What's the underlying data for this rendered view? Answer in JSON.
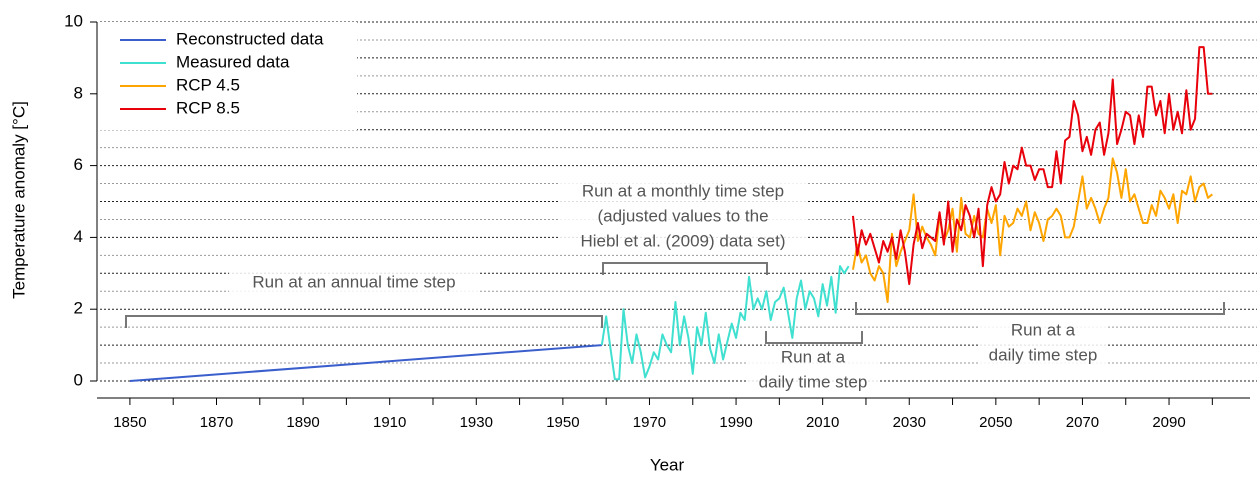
{
  "chart_data": {
    "type": "line",
    "x_label": "Year",
    "y_label": "Temperature anomaly [°C]",
    "xlim": [
      1842.4,
      2108.7
    ],
    "xticks": [
      1850,
      1870,
      1890,
      1910,
      1930,
      1950,
      1970,
      1990,
      2010,
      2030,
      2050,
      2070,
      2090
    ],
    "xminor_ticks": [
      1860,
      1880,
      1900,
      1920,
      1940,
      1960,
      1980,
      2000,
      2020,
      2040,
      2060,
      2080,
      2100
    ],
    "ylim": [
      0,
      10
    ],
    "yticks": [
      0,
      2,
      4,
      6,
      8,
      10
    ],
    "ygrid": [
      0,
      0.5,
      1,
      1.5,
      2,
      2.5,
      3,
      3.5,
      4,
      4.5,
      5,
      5.5,
      6,
      6.5,
      7,
      7.5,
      8,
      8.5,
      9,
      9.5,
      10
    ],
    "grid": true,
    "legend": "top-left",
    "series": [
      {
        "name": "Reconstructed data",
        "color": "#3a5fcd",
        "x": [
          1850,
          1959
        ],
        "values": [
          0,
          1.0
        ]
      },
      {
        "name": "Measured data",
        "color": "#40e0d0",
        "x": [
          1959,
          1960,
          1961,
          1962,
          1963,
          1964,
          1965,
          1966,
          1967,
          1968,
          1969,
          1970,
          1971,
          1972,
          1973,
          1974,
          1975,
          1976,
          1977,
          1978,
          1979,
          1980,
          1981,
          1982,
          1983,
          1984,
          1985,
          1986,
          1987,
          1988,
          1989,
          1990,
          1991,
          1992,
          1993,
          1994,
          1995,
          1996,
          1997,
          1998,
          1999,
          2000,
          2001,
          2002,
          2003,
          2004,
          2005,
          2006,
          2007,
          2008,
          2009,
          2010,
          2011,
          2012,
          2013,
          2014,
          2015,
          2016
        ],
        "values": [
          1.0,
          1.8,
          0.9,
          0.05,
          0.05,
          2.0,
          1.0,
          0.5,
          1.3,
          0.8,
          0.1,
          0.4,
          0.8,
          0.6,
          1.3,
          1.0,
          0.8,
          2.2,
          1.0,
          1.8,
          1.2,
          0.2,
          1.5,
          1.0,
          1.9,
          0.9,
          0.5,
          1.3,
          0.6,
          1.1,
          1.6,
          1.2,
          1.9,
          1.7,
          2.9,
          2.0,
          2.3,
          2.0,
          2.5,
          1.7,
          2.2,
          2.3,
          2.6,
          1.9,
          1.2,
          2.3,
          2.8,
          2.0,
          2.5,
          2.3,
          1.8,
          2.7,
          2.1,
          2.9,
          1.9,
          3.2,
          3.0,
          3.2
        ]
      },
      {
        "name": "RCP 4.5",
        "color": "#ffa500",
        "x": [
          2017,
          2018,
          2019,
          2020,
          2021,
          2022,
          2023,
          2024,
          2025,
          2026,
          2027,
          2028,
          2029,
          2030,
          2031,
          2032,
          2033,
          2034,
          2035,
          2036,
          2037,
          2038,
          2039,
          2040,
          2041,
          2042,
          2043,
          2044,
          2045,
          2046,
          2047,
          2048,
          2049,
          2050,
          2051,
          2052,
          2053,
          2054,
          2055,
          2056,
          2057,
          2058,
          2059,
          2060,
          2061,
          2062,
          2063,
          2064,
          2065,
          2066,
          2067,
          2068,
          2069,
          2070,
          2071,
          2072,
          2073,
          2074,
          2075,
          2076,
          2077,
          2078,
          2079,
          2080,
          2081,
          2082,
          2083,
          2084,
          2085,
          2086,
          2087,
          2088,
          2089,
          2090,
          2091,
          2092,
          2093,
          2094,
          2095,
          2096,
          2097,
          2098,
          2099,
          2100
        ],
        "values": [
          3.1,
          3.8,
          3.3,
          3.5,
          3.0,
          2.8,
          3.2,
          3.0,
          2.2,
          4.1,
          3.2,
          3.6,
          3.9,
          4.2,
          5.2,
          3.9,
          4.3,
          4.0,
          3.8,
          3.5,
          4.6,
          3.9,
          4.2,
          4.8,
          3.6,
          5.1,
          4.1,
          4.0,
          4.6,
          4.1,
          4.0,
          4.8,
          4.4,
          4.9,
          3.5,
          4.6,
          4.3,
          4.4,
          4.8,
          4.6,
          5.0,
          4.2,
          4.7,
          4.4,
          3.9,
          4.5,
          4.6,
          4.8,
          4.6,
          4.0,
          4.0,
          4.3,
          5.0,
          5.7,
          4.8,
          5.1,
          4.8,
          4.4,
          4.8,
          5.1,
          6.2,
          5.8,
          5.1,
          5.9,
          5.0,
          5.2,
          4.8,
          4.4,
          4.4,
          4.9,
          4.6,
          5.3,
          5.1,
          4.8,
          5.2,
          4.4,
          5.3,
          5.2,
          5.7,
          5.0,
          5.4,
          5.5,
          5.1,
          5.2
        ]
      },
      {
        "name": "RCP 8.5",
        "color": "#e8000b",
        "x": [
          2017,
          2018,
          2019,
          2020,
          2021,
          2022,
          2023,
          2024,
          2025,
          2026,
          2027,
          2028,
          2029,
          2030,
          2031,
          2032,
          2033,
          2034,
          2035,
          2036,
          2037,
          2038,
          2039,
          2040,
          2041,
          2042,
          2043,
          2044,
          2045,
          2046,
          2047,
          2048,
          2049,
          2050,
          2051,
          2052,
          2053,
          2054,
          2055,
          2056,
          2057,
          2058,
          2059,
          2060,
          2061,
          2062,
          2063,
          2064,
          2065,
          2066,
          2067,
          2068,
          2069,
          2070,
          2071,
          2072,
          2073,
          2074,
          2075,
          2076,
          2077,
          2078,
          2079,
          2080,
          2081,
          2082,
          2083,
          2084,
          2085,
          2086,
          2087,
          2088,
          2089,
          2090,
          2091,
          2092,
          2093,
          2094,
          2095,
          2096,
          2097,
          2098,
          2099,
          2100
        ],
        "values": [
          4.6,
          3.5,
          4.2,
          3.8,
          4.1,
          3.7,
          3.3,
          3.9,
          3.6,
          4.0,
          3.4,
          4.2,
          3.6,
          2.7,
          3.8,
          4.4,
          3.7,
          4.1,
          4.0,
          3.9,
          4.7,
          3.8,
          5.0,
          3.6,
          4.5,
          4.2,
          4.9,
          4.6,
          4.0,
          4.8,
          3.2,
          4.9,
          5.4,
          5.0,
          5.2,
          6.1,
          5.5,
          6.0,
          5.9,
          6.5,
          6.0,
          6.0,
          5.6,
          5.9,
          5.9,
          5.4,
          5.4,
          6.4,
          5.5,
          6.7,
          6.8,
          7.8,
          7.4,
          6.4,
          6.8,
          6.3,
          7.0,
          7.2,
          6.3,
          6.9,
          8.4,
          6.6,
          7.0,
          7.5,
          7.4,
          6.6,
          7.4,
          6.8,
          8.2,
          8.2,
          7.4,
          7.8,
          6.9,
          8.0,
          7.0,
          7.5,
          6.9,
          8.1,
          7.0,
          7.3,
          9.3,
          9.3,
          8.0,
          8.0
        ]
      }
    ],
    "annotations": [
      {
        "lines": [
          "Run at an annual time step"
        ]
      },
      {
        "lines": [
          "Run at a monthly time step",
          "(adjusted values to the",
          "Hiebl et al. (2009) data set)"
        ]
      },
      {
        "lines": [
          "Run at a",
          "daily time step"
        ]
      },
      {
        "lines": [
          "Run at a",
          "daily time step"
        ]
      }
    ]
  }
}
